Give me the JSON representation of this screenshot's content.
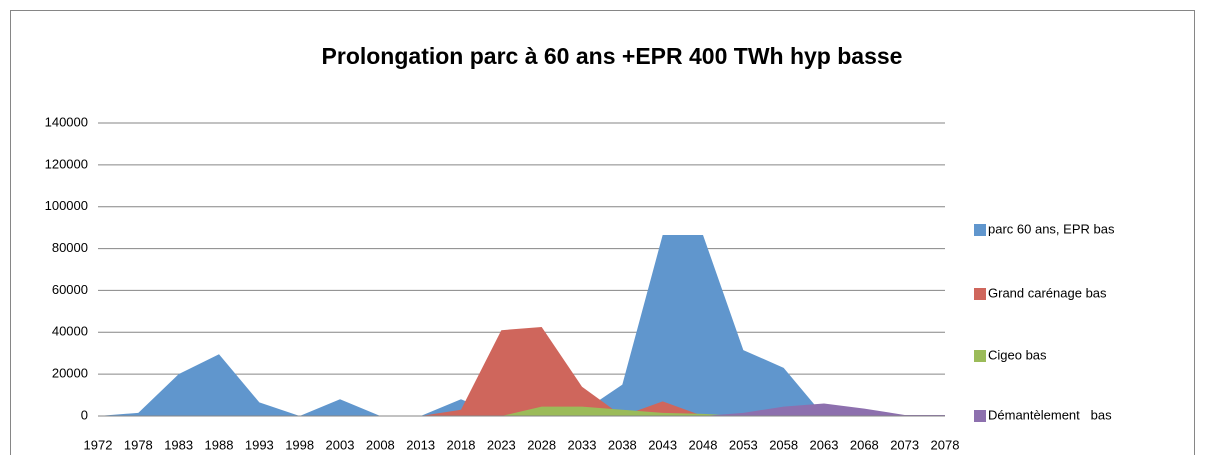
{
  "chart_data": {
    "type": "area",
    "title": "Prolongation parc à 60 ans +EPR 400 TWh hyp basse",
    "categories": [
      "1972",
      "1978",
      "1983",
      "1988",
      "1993",
      "1998",
      "2003",
      "2008",
      "2013",
      "2018",
      "2023",
      "2028",
      "2033",
      "2038",
      "2043",
      "2048",
      "2053",
      "2058",
      "2063",
      "2068",
      "2073",
      "2078"
    ],
    "series": [
      {
        "name": "parc 60 ans, EPR bas",
        "color": "#6096cd",
        "values": [
          0,
          1500,
          20000,
          29500,
          6500,
          0,
          8000,
          0,
          0,
          8000,
          0,
          0,
          2000,
          15000,
          86500,
          86500,
          31500,
          23000,
          0,
          0,
          0,
          0
        ]
      },
      {
        "name": "Grand carénage bas",
        "color": "#cf665c",
        "values": [
          0,
          0,
          0,
          0,
          0,
          0,
          0,
          0,
          0,
          3000,
          41000,
          42500,
          14000,
          0,
          7000,
          0,
          0,
          0,
          0,
          0,
          0,
          0
        ]
      },
      {
        "name": "Cigeo bas",
        "color": "#9bbb59",
        "values": [
          0,
          0,
          0,
          0,
          0,
          0,
          0,
          0,
          0,
          0,
          0,
          4500,
          4500,
          3000,
          1500,
          1000,
          0,
          0,
          0,
          0,
          0,
          0
        ]
      },
      {
        "name": "Démantèlement   bas",
        "color": "#8d70ae",
        "values": [
          0,
          0,
          0,
          0,
          0,
          0,
          0,
          0,
          0,
          0,
          0,
          0,
          0,
          0,
          0,
          0,
          1500,
          4500,
          6000,
          3500,
          500,
          500
        ]
      }
    ],
    "ylim": [
      0,
      140000
    ],
    "yticks": [
      0,
      20000,
      40000,
      60000,
      80000,
      100000,
      120000,
      140000
    ],
    "grid": true,
    "legend": "right"
  }
}
